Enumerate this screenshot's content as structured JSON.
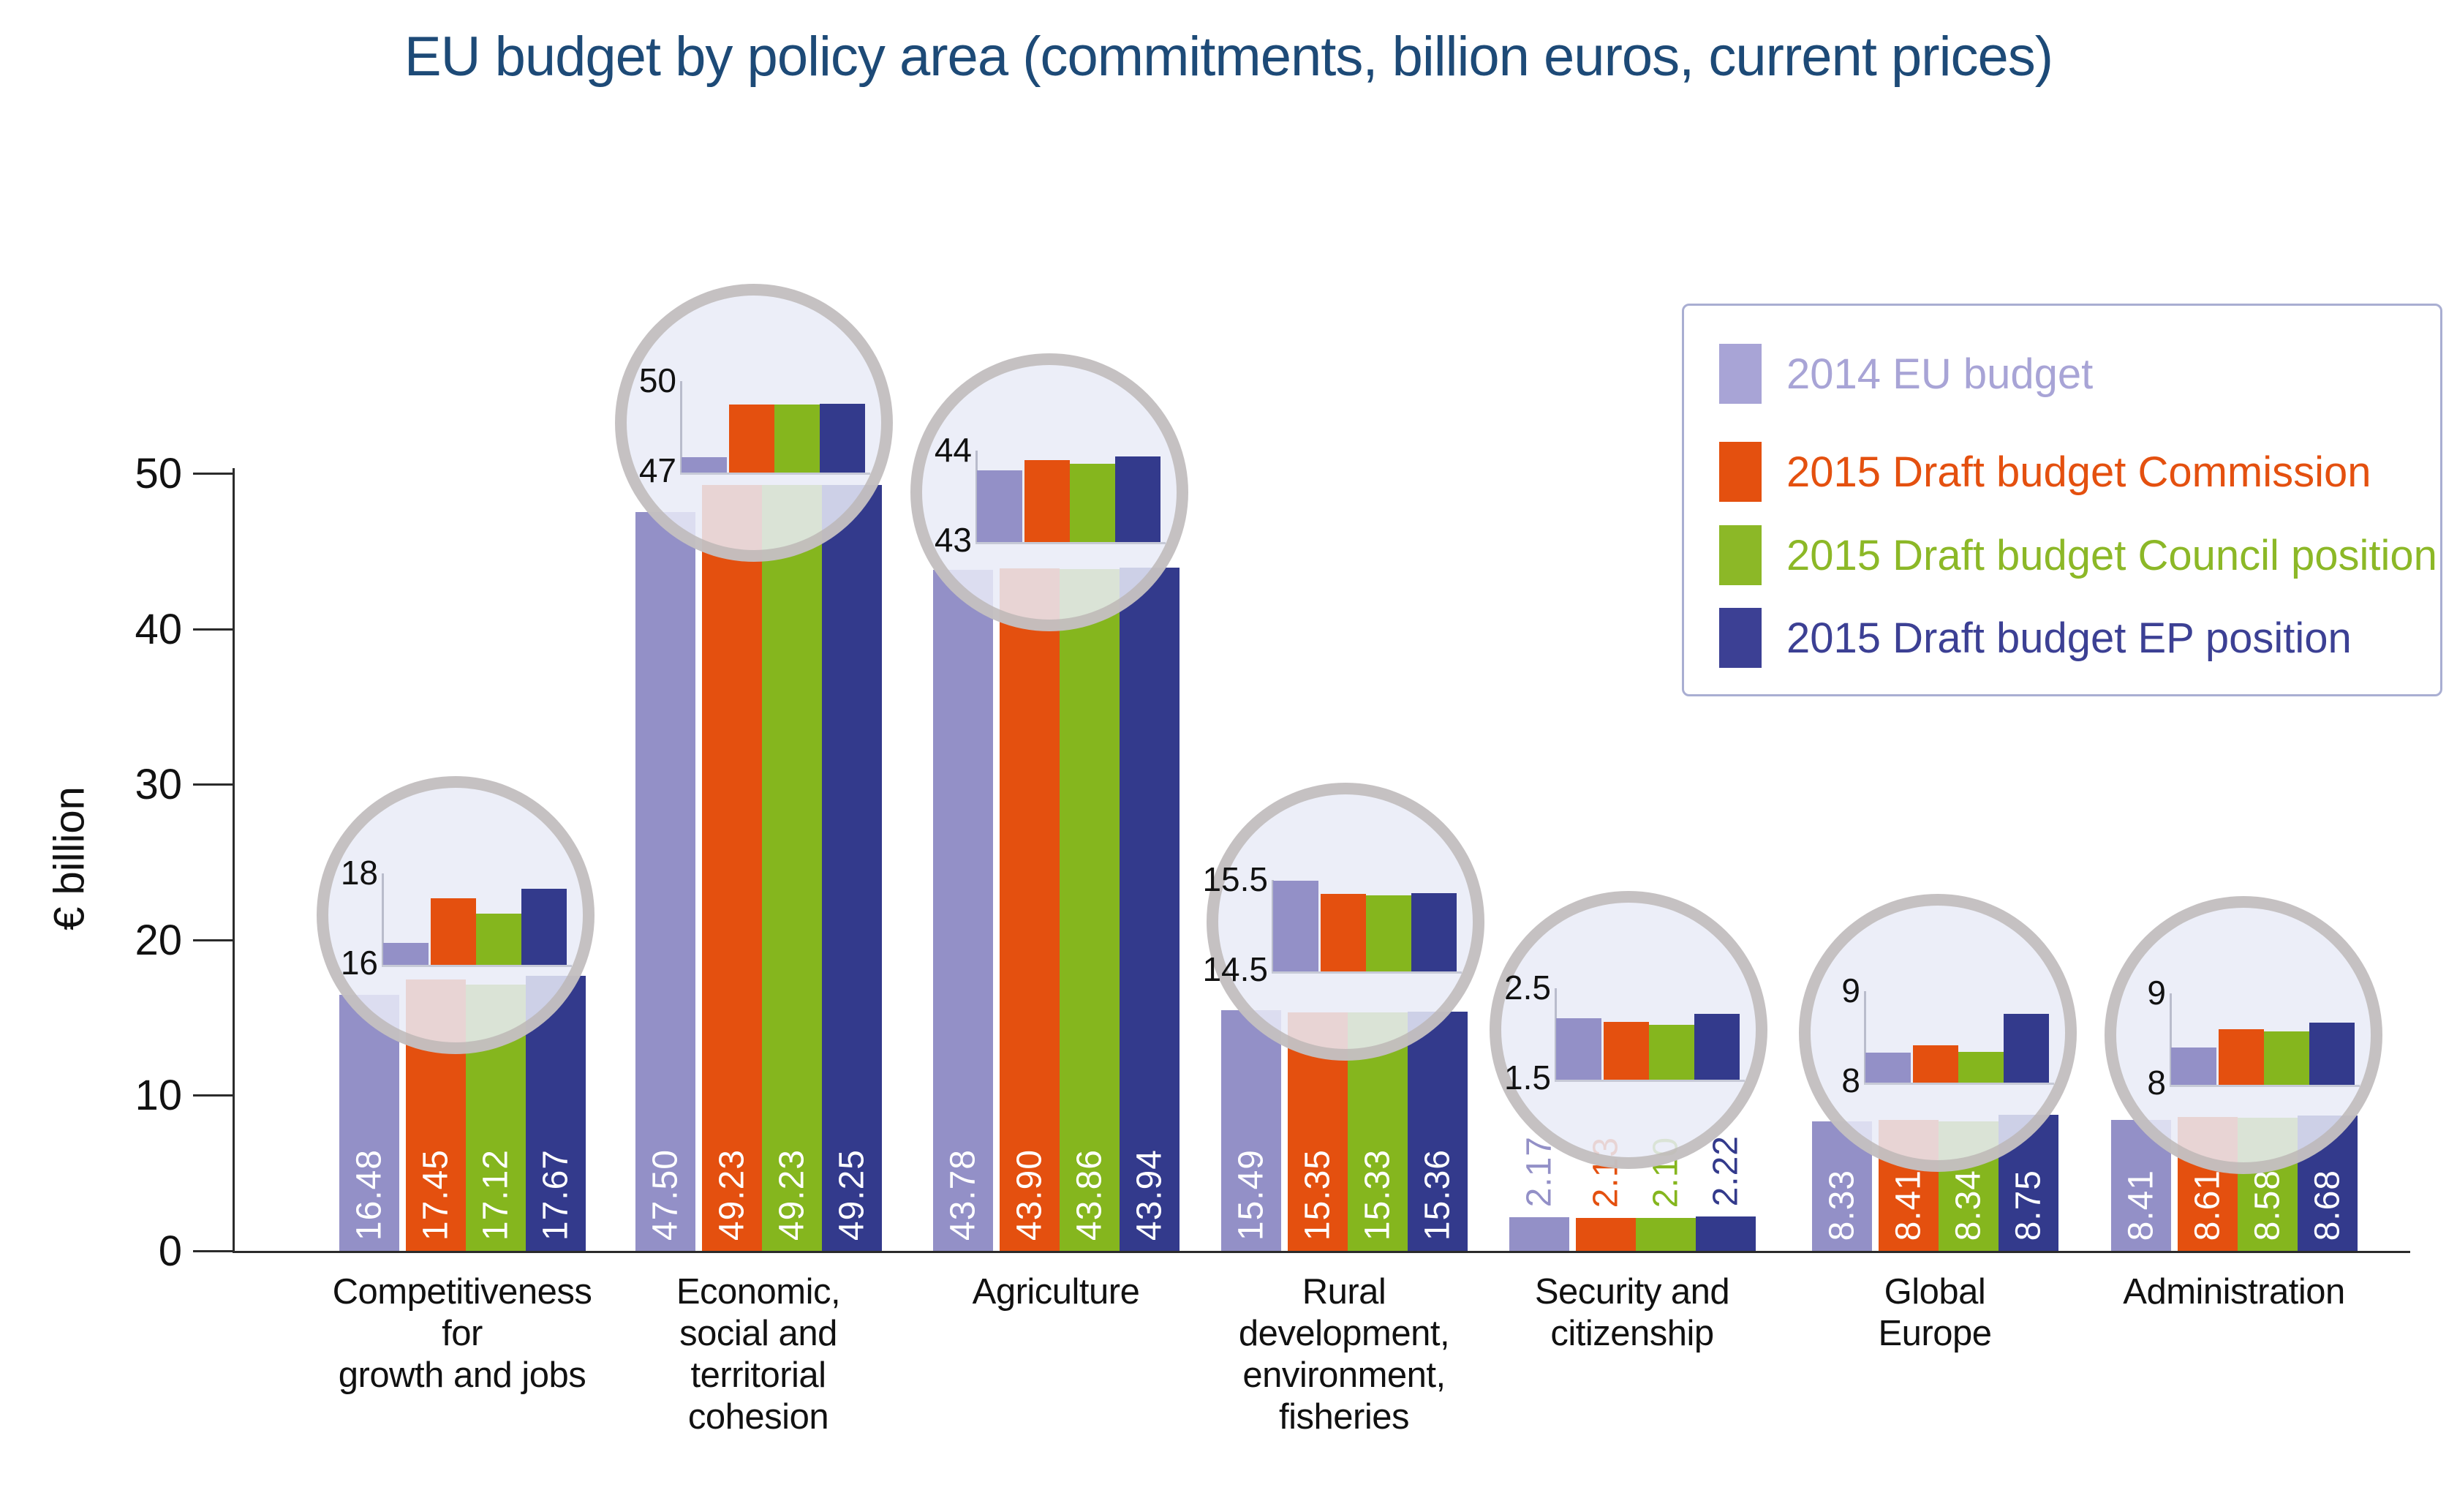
{
  "title": "EU budget by policy area (commitments, billion euros, current prices)",
  "y_axis": {
    "label": "€ billion",
    "ticks": [
      "0",
      "10",
      "20",
      "30",
      "40",
      "50"
    ]
  },
  "legend": {
    "items": [
      {
        "label": "2014 EU budget",
        "color": "#a8a4d6"
      },
      {
        "label": "2015 Draft budget Commission",
        "color": "#e4500f"
      },
      {
        "label": "2015 Draft budget Council position",
        "color": "#8cb827"
      },
      {
        "label": "2015 Draft budget EP position",
        "color": "#3c4094"
      }
    ]
  },
  "chart_data": {
    "type": "bar",
    "title": "EU budget by policy area (commitments, billion euros, current prices)",
    "xlabel": "",
    "ylabel": "€ billion",
    "ylim": [
      0,
      50
    ],
    "grid": false,
    "legend_position": "top-right",
    "categories": [
      "Competitiveness for growth and jobs",
      "Economic, social and territorial cohesion",
      "Agriculture",
      "Rural development, environment, fisheries",
      "Security and citizenship",
      "Global Europe",
      "Administration"
    ],
    "category_label_lines": [
      [
        "Competitiveness",
        "for",
        "growth and jobs"
      ],
      [
        "Economic,",
        "social and",
        "territorial",
        "cohesion"
      ],
      [
        "Agriculture"
      ],
      [
        "Rural",
        "development,",
        "environment,",
        "fisheries"
      ],
      [
        "Security and",
        "citizenship"
      ],
      [
        "Global",
        "Europe"
      ],
      [
        "Administration"
      ]
    ],
    "series": [
      {
        "name": "2014 EU budget",
        "color": "#9390c7",
        "values": [
          16.48,
          47.5,
          43.78,
          15.49,
          2.17,
          8.33,
          8.41
        ]
      },
      {
        "name": "2015 Draft budget Commission",
        "color": "#e4500f",
        "values": [
          17.45,
          49.23,
          43.9,
          15.35,
          2.13,
          8.41,
          8.61
        ]
      },
      {
        "name": "2015 Draft budget Council position",
        "color": "#85b61e",
        "values": [
          17.12,
          49.23,
          43.86,
          15.33,
          2.1,
          8.34,
          8.58
        ]
      },
      {
        "name": "2015 Draft budget EP position",
        "color": "#333a8c",
        "values": [
          17.67,
          49.25,
          43.94,
          15.36,
          2.22,
          8.75,
          8.68
        ]
      }
    ],
    "magnifier_insets": [
      {
        "category_index": 0,
        "axis_top": "18",
        "axis_bottom": "16"
      },
      {
        "category_index": 1,
        "axis_top": "50",
        "axis_bottom": "47"
      },
      {
        "category_index": 2,
        "axis_top": "44",
        "axis_bottom": "43"
      },
      {
        "category_index": 3,
        "axis_top": "15.5",
        "axis_bottom": "14.5"
      },
      {
        "category_index": 4,
        "axis_top": "2.5",
        "axis_bottom": "1.5"
      },
      {
        "category_index": 5,
        "axis_top": "9",
        "axis_bottom": "8"
      },
      {
        "category_index": 6,
        "axis_top": "9",
        "axis_bottom": "8"
      }
    ]
  }
}
